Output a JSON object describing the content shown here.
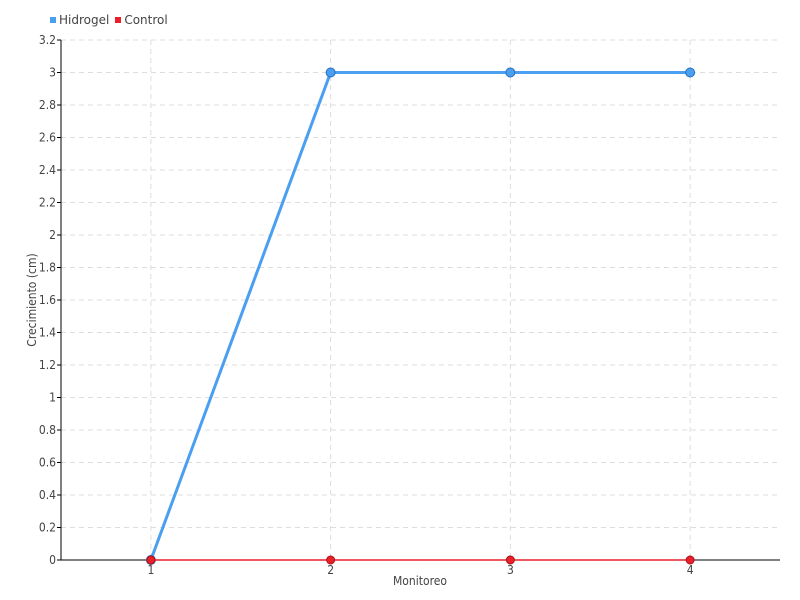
{
  "chart_data": {
    "type": "line",
    "xlabel": "Monitoreo",
    "ylabel": "Crecimiento (cm)",
    "categories": [
      "1",
      "2",
      "3",
      "4"
    ],
    "ylim": [
      0,
      3.2
    ],
    "yticks": [
      "0",
      "0.2",
      "0.4",
      "0.6",
      "0.8",
      "1",
      "1.2",
      "1.4",
      "1.6",
      "1.8",
      "2",
      "2.2",
      "2.4",
      "2.6",
      "2.8",
      "3",
      "3.2"
    ],
    "grid": true,
    "legend": "top-left",
    "series": [
      {
        "name": "Hidrogel",
        "values": [
          0,
          3,
          3,
          3
        ],
        "color": "#4a9ff0"
      },
      {
        "name": "Control",
        "values": [
          0,
          0,
          0,
          0
        ],
        "color": "#e8202a"
      }
    ]
  }
}
